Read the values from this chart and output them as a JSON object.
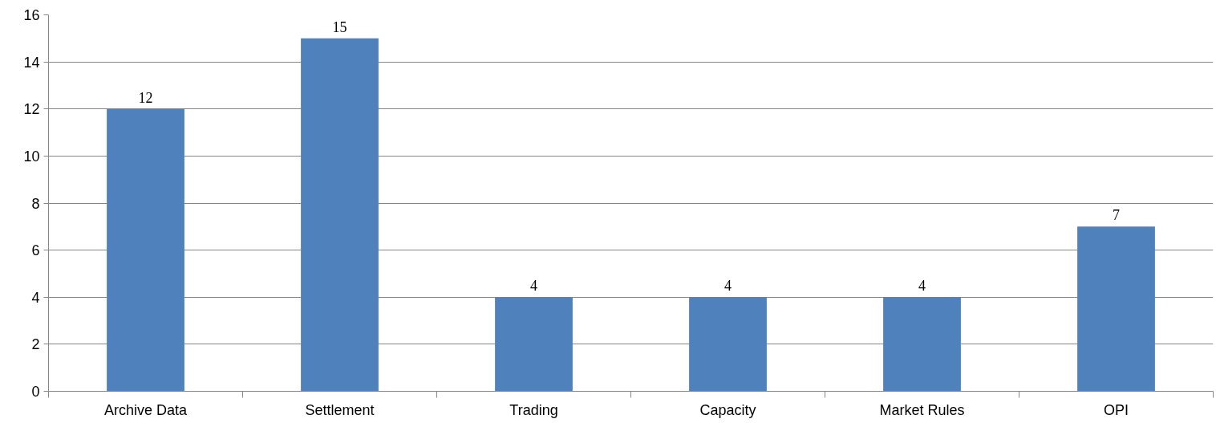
{
  "chart_data": {
    "type": "bar",
    "categories": [
      "Archive Data",
      "Settlement",
      "Trading",
      "Capacity",
      "Market Rules",
      "OPI"
    ],
    "values": [
      12,
      15,
      4,
      4,
      4,
      7
    ],
    "color": "#4f81bd",
    "ylim": [
      0,
      16
    ],
    "yticks": [
      0,
      2,
      4,
      6,
      8,
      10,
      12,
      14,
      16
    ],
    "grid": "y",
    "data_labels": true
  }
}
